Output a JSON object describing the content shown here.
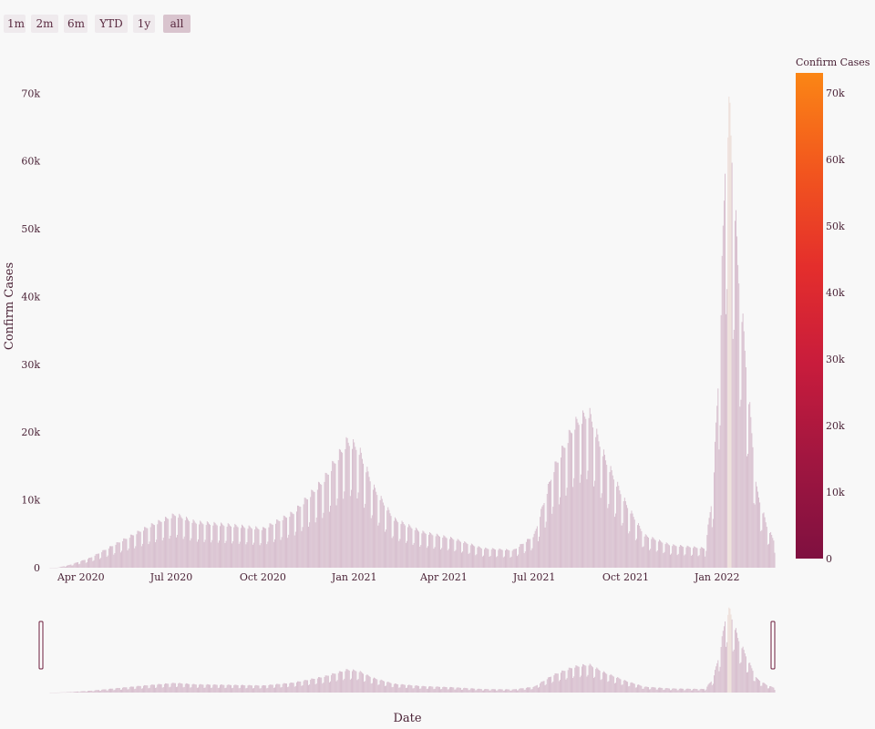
{
  "range_selector": {
    "buttons": [
      {
        "label": "1m",
        "active": false
      },
      {
        "label": "2m",
        "active": false
      },
      {
        "label": "6m",
        "active": false
      },
      {
        "label": "YTD",
        "active": false
      },
      {
        "label": "1y",
        "active": false
      },
      {
        "label": "all",
        "active": true
      }
    ]
  },
  "colors": {
    "bar": "#d6bccc",
    "bar_peak": "#ecdcd6",
    "colorscale": [
      "#7f1040",
      "#a01640",
      "#c81c3c",
      "#e42e2c",
      "#f2561e",
      "#fb8615"
    ]
  },
  "chart_data": {
    "type": "bar",
    "series_name": "Confirm Cases",
    "ylabel": "Confirm Cases",
    "xlabel": "Date",
    "colorbar_title": "Confirm Cases",
    "x_start": "2020-03-01",
    "x_end": "2022-02-28",
    "ylim": [
      0,
      73000
    ],
    "yticks": [
      0,
      10000,
      20000,
      30000,
      40000,
      50000,
      60000,
      70000
    ],
    "ytick_labels": [
      "0",
      "10k",
      "20k",
      "30k",
      "40k",
      "50k",
      "60k",
      "70k"
    ],
    "colorbar_ticks": [
      0,
      10000,
      20000,
      30000,
      40000,
      50000,
      60000,
      70000
    ],
    "colorbar_tick_labels": [
      "0",
      "10k",
      "20k",
      "30k",
      "40k",
      "50k",
      "60k",
      "70k"
    ],
    "colorbar_range": [
      0,
      73000
    ],
    "xticks": [
      "2020-04-01",
      "2020-07-01",
      "2020-10-01",
      "2021-01-01",
      "2021-04-01",
      "2021-07-01",
      "2021-10-01",
      "2022-01-01"
    ],
    "xtick_labels": [
      "Apr 2020",
      "Jul 2020",
      "Oct 2020",
      "Jan 2021",
      "Apr 2021",
      "Jul 2021",
      "Oct 2021",
      "Jan 2022"
    ],
    "weekly_pattern": [
      0.93,
      0.55,
      0.6,
      0.92,
      1.0,
      0.98,
      0.95
    ],
    "trend": [
      [
        "2020-03-08",
        0
      ],
      [
        "2020-03-20",
        400
      ],
      [
        "2020-04-10",
        1500
      ],
      [
        "2020-05-10",
        4000
      ],
      [
        "2020-06-10",
        6500
      ],
      [
        "2020-07-05",
        8200
      ],
      [
        "2020-07-25",
        7000
      ],
      [
        "2020-09-01",
        6500
      ],
      [
        "2020-10-01",
        6000
      ],
      [
        "2020-11-01",
        8500
      ],
      [
        "2020-12-01",
        13500
      ],
      [
        "2020-12-25",
        19500
      ],
      [
        "2021-01-05",
        18500
      ],
      [
        "2021-01-20",
        12500
      ],
      [
        "2021-02-10",
        7500
      ],
      [
        "2021-03-10",
        5500
      ],
      [
        "2021-04-10",
        4500
      ],
      [
        "2021-05-10",
        3000
      ],
      [
        "2021-06-10",
        2700
      ],
      [
        "2021-07-01",
        5000
      ],
      [
        "2021-07-20",
        15000
      ],
      [
        "2021-08-10",
        22000
      ],
      [
        "2021-08-25",
        24000
      ],
      [
        "2021-09-10",
        17000
      ],
      [
        "2021-10-01",
        10000
      ],
      [
        "2021-10-20",
        5000
      ],
      [
        "2021-11-15",
        3500
      ],
      [
        "2021-12-20",
        3000
      ],
      [
        "2021-12-28",
        12000
      ],
      [
        "2022-01-04",
        35000
      ],
      [
        "2022-01-10",
        68000
      ],
      [
        "2022-01-14",
        70000
      ],
      [
        "2022-01-22",
        47000
      ],
      [
        "2022-02-01",
        28000
      ],
      [
        "2022-02-10",
        12000
      ],
      [
        "2022-02-20",
        6500
      ],
      [
        "2022-02-28",
        4000
      ]
    ]
  }
}
